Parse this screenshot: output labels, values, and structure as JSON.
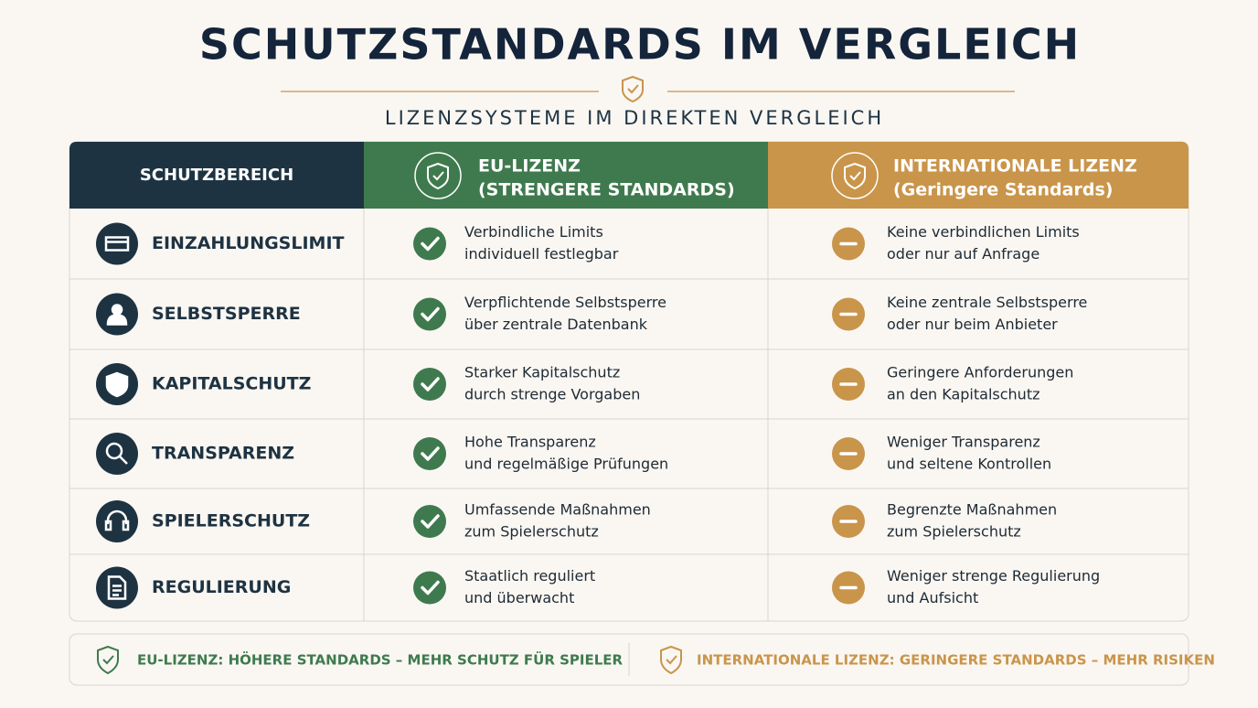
{
  "header": {
    "title": "SCHUTZSTANDARDS IM VERGLEICH",
    "subtitle": "LIZENZSYSTEME IM DIREKTEN VERGLEICH"
  },
  "table": {
    "columns": [
      [
        "SCHUTZBEREICH"
      ],
      [
        "EU-LIZENZ",
        "(STRENGERE STANDARDS)"
      ],
      [
        "INTERNATIONALE LIZENZ",
        "(Geringere Standards)"
      ]
    ],
    "rows": [
      {
        "label": "EINZAHLUNGSLIMIT",
        "eu": [
          "Verbindliche Limits",
          "individuell festlegbar"
        ],
        "intl": [
          "Keine verbindlichen Limits",
          "oder nur auf Anfrage"
        ]
      },
      {
        "label": "SELBSTSPERRE",
        "eu": [
          "Verpflichtende Selbstsperre",
          "über zentrale Datenbank"
        ],
        "intl": [
          "Keine zentrale Selbstsperre",
          "oder nur beim Anbieter"
        ]
      },
      {
        "label": "KAPITALSCHUTZ",
        "eu": [
          "Starker Kapitalschutz",
          "durch strenge Vorgaben"
        ],
        "intl": [
          "Geringere Anforderungen",
          "an den Kapitalschutz"
        ]
      },
      {
        "label": "TRANSPARENZ",
        "eu": [
          "Hohe Transparenz",
          "und regelmäßige Prüfungen"
        ],
        "intl": [
          "Weniger Transparenz",
          "und seltene Kontrollen"
        ]
      },
      {
        "label": "SPIELERSCHUTZ",
        "eu": [
          "Umfassende Maßnahmen",
          "zum Spielerschutz"
        ],
        "intl": [
          "Begrenzte Maßnahmen",
          "zum Spielerschutz"
        ]
      },
      {
        "label": "REGULIERUNG",
        "eu": [
          "Staatlich reguliert",
          "und überwacht"
        ],
        "intl": [
          "Weniger strenge Regulierung",
          "und Aufsicht"
        ]
      }
    ]
  },
  "footer": {
    "eu": "EU-LIZENZ: HÖHERE STANDARDS – MEHR SCHUTZ FÜR SPIELER",
    "intl": "INTERNATIONALE LIZENZ: GERINGERE STANDARDS – MEHR RISIKEN"
  }
}
